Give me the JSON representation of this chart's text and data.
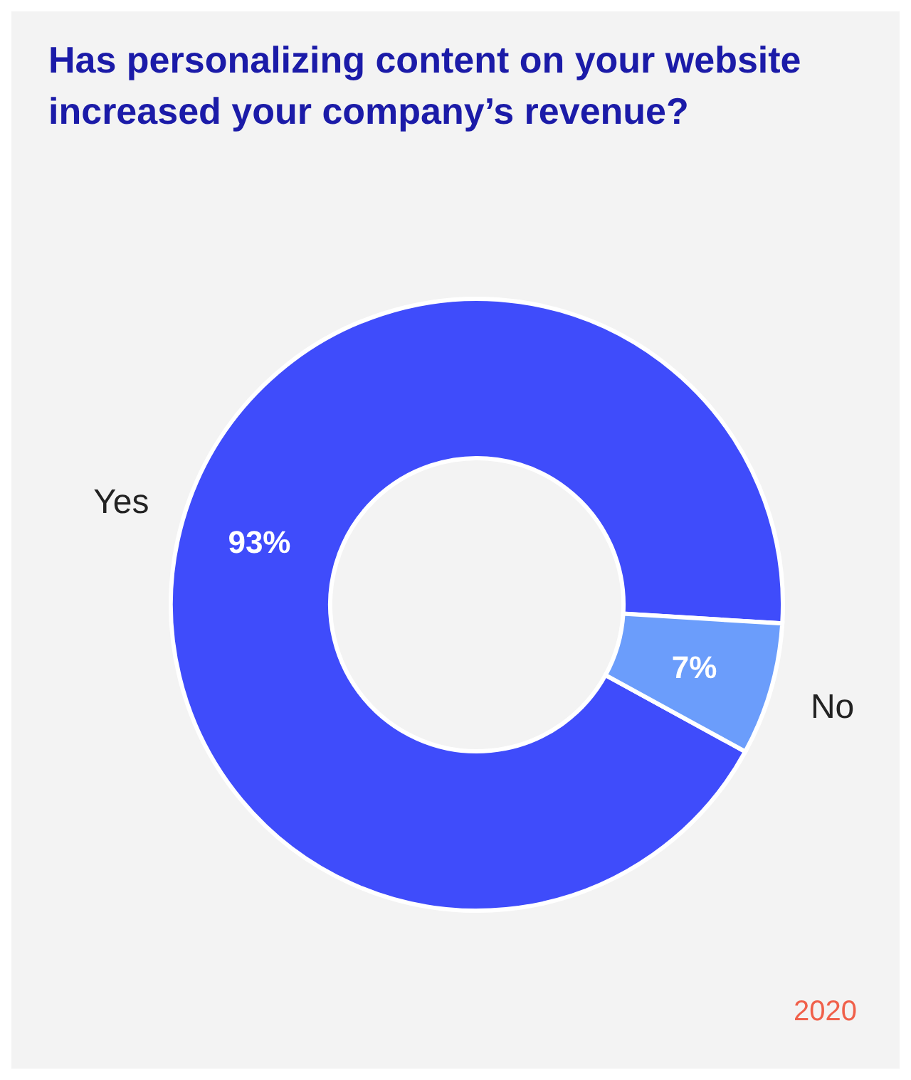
{
  "chart_data": {
    "type": "donut",
    "title": "Has personalizing content on your website increased your company’s revenue?",
    "categories": [
      "Yes",
      "No"
    ],
    "values": [
      93,
      7
    ],
    "colors": [
      "#3f4cfb",
      "#6b9dfb"
    ],
    "value_labels": [
      "93%",
      "7%"
    ],
    "annotations": [
      "2020"
    ]
  }
}
